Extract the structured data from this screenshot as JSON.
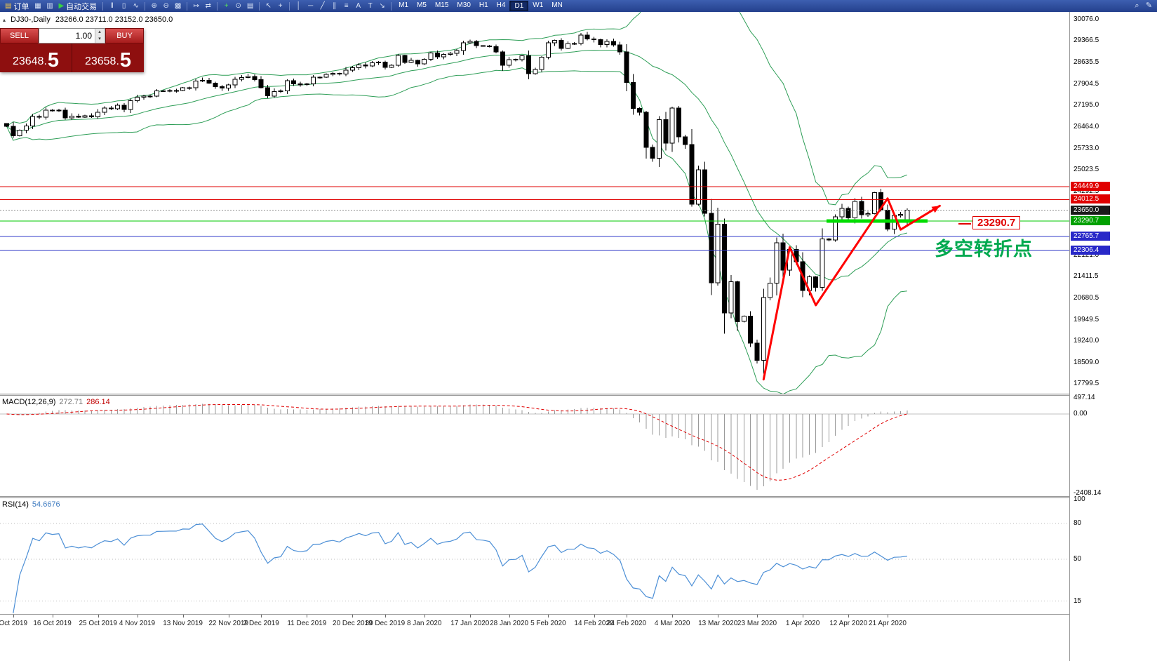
{
  "toolbar": {
    "items": [
      {
        "type": "button",
        "name": "new-order-button",
        "glyph": "▤",
        "glyph_color": "#f7c948",
        "label": "订单"
      },
      {
        "type": "icon",
        "name": "charts-grid-icon",
        "glyph": "▦"
      },
      {
        "type": "icon",
        "name": "profiles-icon",
        "glyph": "▥"
      },
      {
        "type": "button",
        "name": "autotrading-button",
        "glyph": "▶",
        "glyph_color": "#37d043",
        "label": "自动交易"
      },
      {
        "type": "sep"
      },
      {
        "type": "icon",
        "name": "bars-chart-icon",
        "glyph": "‖"
      },
      {
        "type": "icon",
        "name": "candles-chart-icon",
        "glyph": "▯"
      },
      {
        "type": "icon",
        "name": "line-chart-icon",
        "glyph": "∿"
      },
      {
        "type": "sep"
      },
      {
        "type": "icon",
        "name": "zoom-in-icon",
        "glyph": "⊕"
      },
      {
        "type": "icon",
        "name": "zoom-out-icon",
        "glyph": "⊖"
      },
      {
        "type": "icon",
        "name": "tile-windows-icon",
        "glyph": "▩"
      },
      {
        "type": "sep"
      },
      {
        "type": "icon",
        "name": "auto-scroll-icon",
        "glyph": "↦"
      },
      {
        "type": "icon",
        "name": "chart-shift-icon",
        "glyph": "⇄"
      },
      {
        "type": "sep"
      },
      {
        "type": "icon",
        "name": "indicators-icon",
        "glyph": "+",
        "color": "#57e05b"
      },
      {
        "type": "icon",
        "name": "periods-icon",
        "glyph": "⊙"
      },
      {
        "type": "icon",
        "name": "templates-icon",
        "glyph": "▤"
      },
      {
        "type": "sep"
      },
      {
        "type": "icon",
        "name": "cursor-icon",
        "glyph": "↖"
      },
      {
        "type": "icon",
        "name": "crosshair-icon",
        "glyph": "+"
      },
      {
        "type": "sep"
      },
      {
        "type": "icon",
        "name": "vertical-line-icon",
        "glyph": "│"
      },
      {
        "type": "icon",
        "name": "horizontal-line-icon",
        "glyph": "─"
      },
      {
        "type": "icon",
        "name": "trendline-icon",
        "glyph": "╱"
      },
      {
        "type": "icon",
        "name": "channel-icon",
        "glyph": "∥"
      },
      {
        "type": "icon",
        "name": "fibonacci-icon",
        "glyph": "≡"
      },
      {
        "type": "icon",
        "name": "text-icon",
        "glyph": "A"
      },
      {
        "type": "icon",
        "name": "label-icon",
        "glyph": "T"
      },
      {
        "type": "icon",
        "name": "arrows-icon",
        "glyph": "↘"
      },
      {
        "type": "sep"
      }
    ],
    "timeframes": [
      "M1",
      "M5",
      "M15",
      "M30",
      "H1",
      "H4",
      "D1",
      "W1",
      "MN"
    ],
    "active_timeframe": "D1",
    "right_items": [
      {
        "name": "search-icon",
        "glyph": "⌕"
      },
      {
        "name": "edit-icon",
        "glyph": "✎"
      }
    ]
  },
  "icons": {
    "volume_up": "▴",
    "volume_down": "▾",
    "quote_marker": "▴"
  },
  "quote_bar": {
    "symbol_period": "DJ30-,Daily",
    "ohlc": "23266.0 23711.0 23152.0 23650.0"
  },
  "one_click": {
    "sell_label": "SELL",
    "buy_label": "BUY",
    "volume": "1.00",
    "sell_price_main": "23648.",
    "sell_price_big": "5",
    "buy_price_main": "23658.",
    "buy_price_big": "5"
  },
  "indicator_labels": {
    "macd_name": "MACD(12,26,9)",
    "macd_value": "272.71",
    "macd_signal": "286.14",
    "rsi_name": "RSI(14)",
    "rsi_value": "54.6676"
  },
  "annotations": {
    "support_price_label": "23290.7",
    "turning_point_label": "多空转折点"
  },
  "axes": {
    "price_ticks": [
      "30076.0",
      "29366.5",
      "28635.5",
      "27904.5",
      "27195.0",
      "26464.0",
      "25733.0",
      "25023.5",
      "24292.5",
      "23561.5",
      "22121.0",
      "21411.5",
      "20680.5",
      "19949.5",
      "19240.0",
      "18509.0",
      "17799.5"
    ],
    "price_tags": [
      {
        "text": "24449.9",
        "color": "#e00000"
      },
      {
        "text": "24012.5",
        "color": "#e00000"
      },
      {
        "text": "23650.0",
        "color": "#1a1a1a"
      },
      {
        "text": "23290.7",
        "color": "#00a000"
      },
      {
        "text": "22765.7",
        "color": "#2828c8"
      },
      {
        "text": "22306.4",
        "color": "#2828c8"
      }
    ],
    "macd_ticks": [
      {
        "text": "497.14",
        "value": 497.14
      },
      {
        "text": "0.00",
        "value": 0
      },
      {
        "text": "-2408.14",
        "value": -2408.14
      }
    ],
    "rsi_ticks": [
      {
        "text": "100",
        "value": 100
      },
      {
        "text": "80",
        "value": 80
      },
      {
        "text": "50",
        "value": 50
      },
      {
        "text": "15",
        "value": 15
      }
    ],
    "date_ticks": [
      {
        "text": "Oct 2019",
        "index": 1
      },
      {
        "text": "16 Oct 2019",
        "index": 7
      },
      {
        "text": "25 Oct 2019",
        "index": 14
      },
      {
        "text": "4 Nov 2019",
        "index": 20
      },
      {
        "text": "13 Nov 2019",
        "index": 27
      },
      {
        "text": "22 Nov 2019",
        "index": 34
      },
      {
        "text": "2 Dec 2019",
        "index": 39
      },
      {
        "text": "11 Dec 2019",
        "index": 46
      },
      {
        "text": "20 Dec 2019",
        "index": 53
      },
      {
        "text": "30 Dec 2019",
        "index": 58
      },
      {
        "text": "8 Jan 2020",
        "index": 64
      },
      {
        "text": "17 Jan 2020",
        "index": 71
      },
      {
        "text": "28 Jan 2020",
        "index": 77
      },
      {
        "text": "5 Feb 2020",
        "index": 83
      },
      {
        "text": "14 Feb 2020",
        "index": 90
      },
      {
        "text": "24 Feb 2020",
        "index": 95
      },
      {
        "text": "4 Mar 2020",
        "index": 102
      },
      {
        "text": "13 Mar 2020",
        "index": 109
      },
      {
        "text": "23 Mar 2020",
        "index": 115
      },
      {
        "text": "1 Apr 2020",
        "index": 122
      },
      {
        "text": "12 Apr 2020",
        "index": 129
      },
      {
        "text": "21 Apr 2020",
        "index": 135
      }
    ]
  },
  "chart_data": {
    "type": "candlestick",
    "symbol": "DJ30",
    "period": "Daily",
    "main": {
      "first_open": 26573,
      "closes": [
        26478,
        26164,
        26346,
        26496,
        26817,
        26787,
        27025,
        27002,
        27026,
        26770,
        26828,
        26788,
        26834,
        26805,
        26958,
        27090,
        27071,
        27186,
        27046,
        27347,
        27462,
        27493,
        27492,
        27675,
        27681,
        27691,
        27692,
        27784,
        27782,
        28005,
        28036,
        27934,
        27821,
        27766,
        27875,
        28066,
        28121,
        28164,
        28051,
        27783,
        27503,
        27650,
        27678,
        28015,
        27910,
        27882,
        27911,
        28132,
        28135,
        28236,
        28267,
        28239,
        28377,
        28455,
        28551,
        28515,
        28621,
        28645,
        28462,
        28538,
        28869,
        28635,
        28704,
        28584,
        28745,
        28957,
        28824,
        28907,
        28939,
        29030,
        29298,
        29348,
        29196,
        29186,
        29160,
        28990,
        28536,
        28723,
        28734,
        28859,
        28256,
        28400,
        28808,
        29291,
        29380,
        29103,
        29277,
        29276,
        29551,
        29423,
        29398,
        29232,
        29348,
        29220,
        28992,
        27961,
        27081,
        26958,
        25767,
        25409,
        26703,
        25917,
        27091,
        26121,
        25865,
        23851,
        25018,
        23553,
        21201,
        23186,
        20188,
        21237,
        19899,
        20087,
        19174,
        18592,
        20705,
        21200,
        22552,
        21637,
        22327,
        21917,
        20944,
        21413,
        21053,
        22680,
        22654,
        23434,
        23719,
        23391,
        23950,
        23504,
        23538,
        24242,
        23651,
        23019,
        23476,
        23515,
        23650
      ],
      "last_ohlc": [
        23266.0,
        23711.0,
        23152.0,
        23650.0
      ],
      "bollinger_period": 20,
      "bollinger_color": "#2e9e57",
      "candle_up_color": "#ffffff",
      "candle_down_color": "#000000",
      "levels": [
        {
          "price": 24449.9,
          "color": "#e00000",
          "width": 1,
          "style": "solid"
        },
        {
          "price": 24012.5,
          "color": "#e00000",
          "width": 1,
          "style": "solid"
        },
        {
          "price": 23650.0,
          "color": "#909090",
          "width": 1,
          "style": "dot"
        },
        {
          "price": 23290.7,
          "color": "#00c800",
          "width": 1,
          "style": "solid"
        },
        {
          "price": 22765.7,
          "color": "#3038c8",
          "width": 1,
          "style": "solid"
        },
        {
          "price": 22306.4,
          "color": "#3038c8",
          "width": 1,
          "style": "solid"
        }
      ],
      "support_segment": {
        "price": 23290.7,
        "from_index": 126,
        "to_index": 141.5,
        "color": "#00dd00",
        "width": 5
      },
      "zigzag": {
        "color": "#ff0000",
        "width": 3,
        "points": [
          [
            116,
            17950
          ],
          [
            120,
            22400
          ],
          [
            124,
            20450
          ],
          [
            135,
            24050
          ],
          [
            137,
            23000
          ],
          [
            143,
            23800
          ]
        ]
      }
    },
    "macd": {
      "fast": 12,
      "slow": 26,
      "signal": 9,
      "range": [
        -2408.14,
        497.14
      ],
      "hist_color": "#9a9a9a",
      "signal_color": "#e00000"
    },
    "rsi": {
      "period": 14,
      "levels": [
        80,
        50,
        15
      ],
      "color": "#4c8fd6",
      "level_color": "#b8b8b8"
    }
  }
}
